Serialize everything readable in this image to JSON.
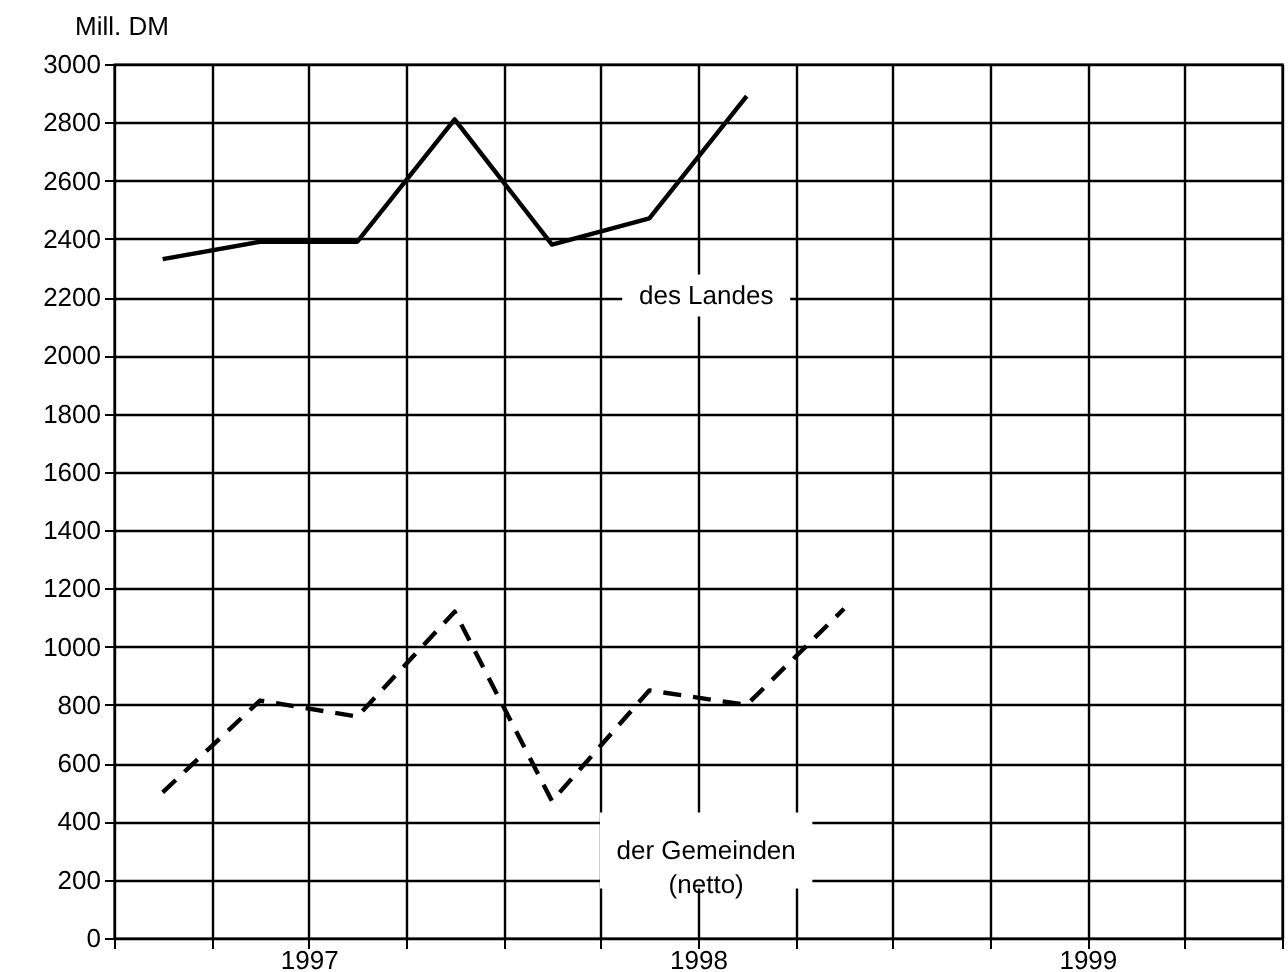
{
  "chart_data": {
    "type": "line",
    "ylabel": "Mill. DM",
    "xlim": [
      1997,
      2000
    ],
    "xticks": [
      {
        "value": 1997,
        "label": null
      },
      {
        "value": 1997.25,
        "label": null
      },
      {
        "value": 1997.5,
        "label": "1997"
      },
      {
        "value": 1997.75,
        "label": null
      },
      {
        "value": 1998,
        "label": null
      },
      {
        "value": 1998.25,
        "label": null
      },
      {
        "value": 1998.5,
        "label": "1998"
      },
      {
        "value": 1998.75,
        "label": null
      },
      {
        "value": 1999,
        "label": null
      },
      {
        "value": 1999.25,
        "label": null
      },
      {
        "value": 1999.5,
        "label": "1999"
      },
      {
        "value": 1999.75,
        "label": null
      },
      {
        "value": 2000,
        "label": null
      }
    ],
    "ylim": [
      0,
      3000
    ],
    "yticks": [
      0,
      200,
      400,
      600,
      800,
      1000,
      1200,
      1400,
      1600,
      1800,
      2000,
      2200,
      2400,
      2600,
      2800,
      3000
    ],
    "grid": true,
    "legend": false,
    "series": [
      {
        "name": "des Landes",
        "color": "#000000",
        "line_style": "solid",
        "x": [
          1997.125,
          1997.375,
          1997.625,
          1997.875,
          1998.125,
          1998.375,
          1998.625
        ],
        "values": [
          2330,
          2390,
          2390,
          2810,
          2380,
          2470,
          2890
        ]
      },
      {
        "name": "der Gemeinden (netto)",
        "color": "#000000",
        "line_style": "dashed",
        "x": [
          1997.125,
          1997.375,
          1997.625,
          1997.875,
          1998.125,
          1998.375,
          1998.625,
          1998.875
        ],
        "values": [
          500,
          815,
          760,
          1120,
          470,
          850,
          800,
          1130
        ]
      }
    ]
  }
}
